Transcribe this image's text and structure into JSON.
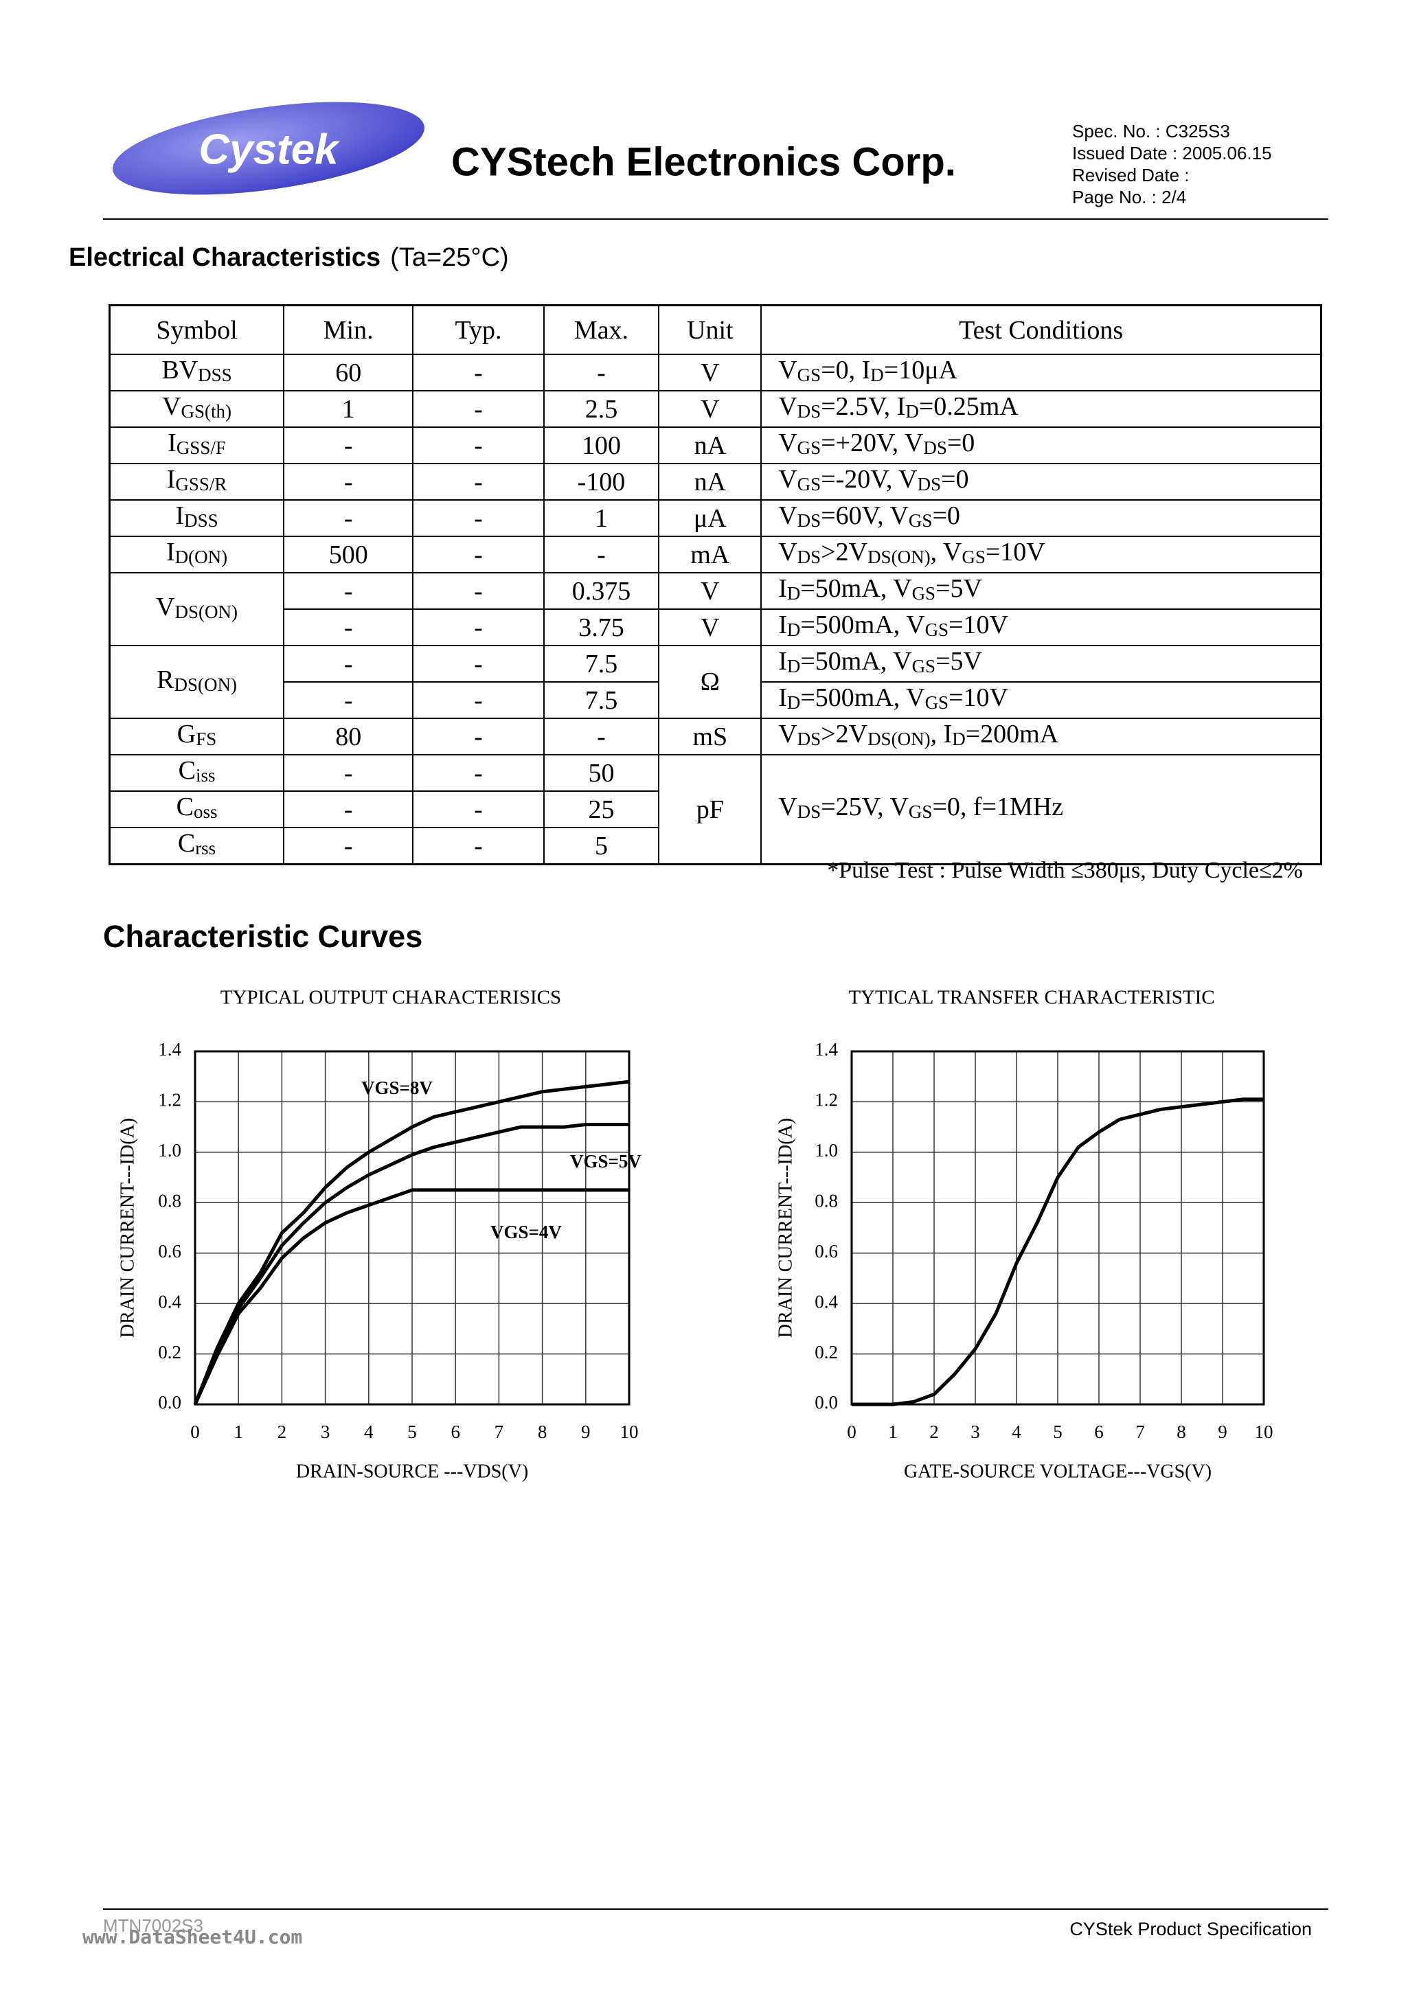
{
  "header": {
    "logo": "Cystek",
    "company": "CYStech Electronics Corp.",
    "spec": [
      "Spec. No. : C325S3",
      "Issued Date : 2005.06.15",
      "Revised Date :",
      "Page No. : 2/4"
    ]
  },
  "section": {
    "title": "Electrical Characteristics",
    "condition": "(Ta=25°C)"
  },
  "table": {
    "headers": [
      "Symbol",
      "Min.",
      "Typ.",
      "Max.",
      "Unit",
      "Test Conditions"
    ],
    "rows": [
      {
        "symbol": [
          "BV",
          "DSS"
        ],
        "min": "60",
        "typ": "-",
        "max": "-",
        "unit": "V",
        "conditions": [
          "V",
          "GS",
          "=0, I",
          "D",
          "=10μA"
        ]
      },
      {
        "symbol": [
          "V",
          "GS(th)"
        ],
        "min": "1",
        "typ": "-",
        "max": "2.5",
        "unit": "V",
        "conditions": [
          "V",
          "DS",
          "=2.5V, I",
          "D",
          "=0.25mA"
        ]
      },
      {
        "symbol": [
          "I",
          "GSS/F"
        ],
        "min": "-",
        "typ": "-",
        "max": "100",
        "unit": "nA",
        "conditions": [
          "V",
          "GS",
          "=+20V, V",
          "DS",
          "=0"
        ]
      },
      {
        "symbol": [
          "I",
          "GSS/R"
        ],
        "min": "-",
        "typ": "-",
        "max": "-100",
        "unit": "nA",
        "conditions": [
          "V",
          "GS",
          "=-20V, V",
          "DS",
          "=0"
        ]
      },
      {
        "symbol": [
          "I",
          "DSS"
        ],
        "min": "-",
        "typ": "-",
        "max": "1",
        "unit": "μA",
        "conditions": [
          "V",
          "DS",
          "=60V, V",
          "GS",
          "=0"
        ]
      },
      {
        "symbol": [
          "I",
          "D(ON)"
        ],
        "min": "500",
        "typ": "-",
        "max": "-",
        "unit": "mA",
        "conditions": [
          "V",
          "DS",
          ">2V",
          "DS(ON)",
          ", V",
          "GS",
          "=10V"
        ]
      },
      {
        "symbol": [
          "V",
          "DS(ON)"
        ],
        "min": "-",
        "typ": "-",
        "max": "0.375",
        "unit": "V",
        "conditions": [
          "I",
          "D",
          "=50mA, V",
          "GS",
          "=5V"
        ]
      },
      {
        "min": "-",
        "typ": "-",
        "max": "3.75",
        "unit": "V",
        "conditions": [
          "I",
          "D",
          "=500mA, V",
          "GS",
          "=10V"
        ]
      },
      {
        "symbol": [
          "R",
          "DS(ON)"
        ],
        "min": "-",
        "typ": "-",
        "max": "7.5",
        "unit": "Ω",
        "conditions": [
          "I",
          "D",
          "=50mA, V",
          "GS",
          "=5V"
        ]
      },
      {
        "min": "-",
        "typ": "-",
        "max": "7.5",
        "conditions": [
          "I",
          "D",
          "=500mA, V",
          "GS",
          "=10V"
        ]
      },
      {
        "symbol": [
          "G",
          "FS"
        ],
        "min": "80",
        "typ": "-",
        "max": "-",
        "unit": "mS",
        "conditions": [
          "V",
          "DS",
          ">2V",
          "DS(ON)",
          ", I",
          "D",
          "=200mA"
        ]
      },
      {
        "symbol": [
          "C",
          "iss"
        ],
        "min": "-",
        "typ": "-",
        "max": "50",
        "unit": "pF",
        "conditions": [
          "V",
          "DS",
          "=25V, V",
          "GS",
          "=0, f=1MHz"
        ]
      },
      {
        "symbol": [
          "C",
          "oss"
        ],
        "min": "-",
        "typ": "-",
        "max": "25"
      },
      {
        "symbol": [
          "C",
          "rss"
        ],
        "min": "-",
        "typ": "-",
        "max": "5"
      }
    ]
  },
  "footnote": "*Pulse Test : Pulse Width ≤380μs, Duty Cycle≤2%",
  "curves_title": "Characteristic Curves",
  "chart_data": [
    {
      "type": "line",
      "title": "TYPICAL   OUTPUT  CHARACTERISICS",
      "xlabel": "DRAIN-SOURCE ---VDS(V)",
      "ylabel": "DRAIN  CURRENT---ID(A)",
      "xlim": [
        0,
        10
      ],
      "ylim": [
        0,
        1.4
      ],
      "xticks": [
        0,
        1,
        2,
        3,
        4,
        5,
        6,
        7,
        8,
        9,
        10
      ],
      "yticks": [
        {
          "value": 0,
          "label": "0.0"
        },
        0.2,
        0.4,
        0.6,
        0.8,
        {
          "value": 1,
          "label": "1.0"
        },
        1.2,
        1.4
      ],
      "grid": true,
      "x": [
        0,
        0.5,
        1,
        1.5,
        2,
        2.5,
        3,
        3.5,
        4,
        4.5,
        5,
        5.5,
        6,
        6.5,
        7,
        7.5,
        8,
        8.5,
        9,
        9.5,
        10
      ],
      "series": [
        {
          "name": "VGS=8V",
          "color": "#000000",
          "values": [
            0,
            0.22,
            0.4,
            0.52,
            0.68,
            0.76,
            0.86,
            0.94,
            1.0,
            1.05,
            1.1,
            1.14,
            1.16,
            1.18,
            1.2,
            1.22,
            1.24,
            1.25,
            1.26,
            1.27,
            1.28
          ]
        },
        {
          "name": "VGS=5V",
          "color": "#000000",
          "values": [
            0,
            0.2,
            0.38,
            0.5,
            0.63,
            0.72,
            0.8,
            0.86,
            0.91,
            0.95,
            0.99,
            1.02,
            1.04,
            1.06,
            1.08,
            1.1,
            1.1,
            1.1,
            1.11,
            1.11,
            1.11
          ]
        },
        {
          "name": "VGS=4V",
          "color": "#000000",
          "values": [
            0,
            0.19,
            0.36,
            0.46,
            0.58,
            0.66,
            0.72,
            0.76,
            0.79,
            0.82,
            0.85,
            0.85,
            0.85,
            0.85,
            0.85,
            0.85,
            0.85,
            0.85,
            0.85,
            0.85,
            0.85
          ]
        }
      ]
    },
    {
      "type": "line",
      "title": "TYTICAL TRANSFER CHARACTERISTIC",
      "xlabel": "GATE-SOURCE  VOLTAGE---VGS(V)",
      "ylabel": "DRAIN  CURRENT---ID(A)",
      "xlim": [
        0,
        10
      ],
      "ylim": [
        0,
        1.4
      ],
      "xticks": [
        0,
        1,
        2,
        3,
        4,
        5,
        6,
        7,
        8,
        9,
        10
      ],
      "yticks": [
        {
          "value": 0,
          "label": "0.0"
        },
        0.2,
        0.4,
        0.6,
        0.8,
        {
          "value": 1,
          "label": "1.0"
        },
        1.2,
        1.4
      ],
      "grid": true,
      "x": [
        0,
        0.5,
        1,
        1.5,
        2,
        2.5,
        3,
        3.5,
        4,
        4.5,
        5,
        5.5,
        6,
        6.5,
        7,
        7.5,
        8,
        8.5,
        9,
        9.5,
        10
      ],
      "series": [
        {
          "color": "#000000",
          "values": [
            0,
            0,
            0,
            0.01,
            0.04,
            0.12,
            0.22,
            0.36,
            0.56,
            0.72,
            0.9,
            1.02,
            1.08,
            1.13,
            1.15,
            1.17,
            1.18,
            1.19,
            1.2,
            1.21,
            1.21
          ]
        }
      ]
    }
  ],
  "footer": {
    "part": "MTN7002S3",
    "watermark": "www.DataSheet4U.com",
    "spec": "CYStek Product Specification"
  }
}
